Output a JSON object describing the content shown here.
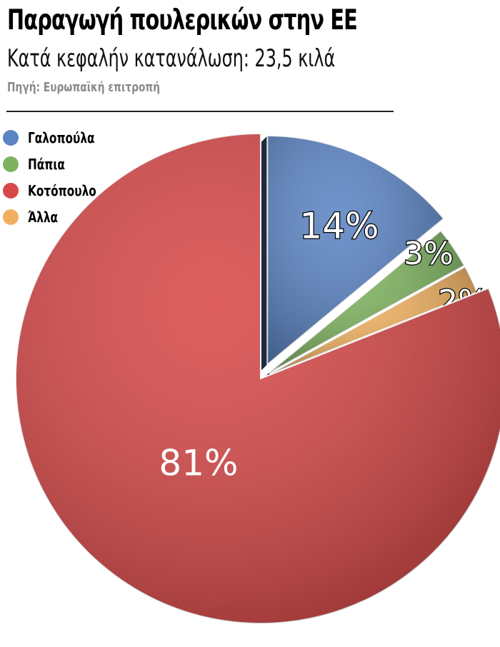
{
  "title": "Παραγωγή πουλερικών στην ΕΕ",
  "subtitle": "Κατά κεφαλήν κατανάλωση: 23,5 κιλά",
  "source": "Πηγή: Ευρωπαϊκή επιτροπή",
  "chart_data": {
    "type": "pie",
    "categories": [
      "Γαλοπούλα",
      "Πάπια",
      "Άλλα",
      "Κοτόπουλο"
    ],
    "values": [
      14,
      3,
      2,
      81
    ],
    "labels": [
      "14%",
      "3%",
      "2%",
      "81%"
    ],
    "colors": [
      "#5b84c4",
      "#7db25f",
      "#f0b060",
      "#d84848"
    ],
    "exploded": [
      "Γαλοπούλα",
      "Πάπια",
      "Άλλα"
    ],
    "legend_position": "top-left"
  },
  "legend": [
    {
      "label": "Γαλοπούλα",
      "color": "#5b84c4"
    },
    {
      "label": "Πάπια",
      "color": "#7db25f"
    },
    {
      "label": "Κοτόπουλο",
      "color": "#d84848"
    },
    {
      "label": "Άλλα",
      "color": "#f0b060"
    }
  ]
}
